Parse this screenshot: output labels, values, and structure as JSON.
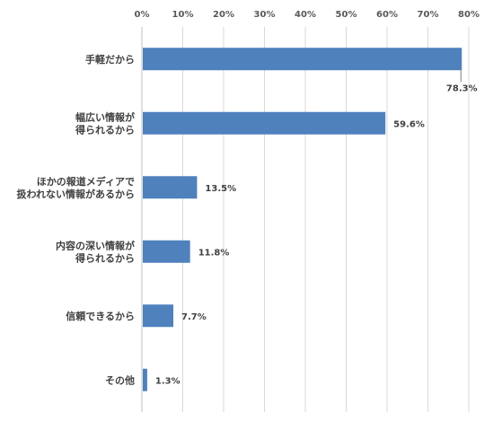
{
  "chart_data": {
    "type": "bar",
    "orientation": "horizontal",
    "categories": [
      "手軽だから",
      "幅広い情報が\n得られるから",
      "ほかの報道メディアで\n扱われない情報があるから",
      "内容の深い情報が\n得られるから",
      "信頼できるから",
      "その他"
    ],
    "values": [
      78.3,
      59.6,
      13.5,
      11.8,
      7.7,
      1.3
    ],
    "value_labels": [
      "78.3%",
      "59.6%",
      "13.5%",
      "11.8%",
      "7.7%",
      "1.3%"
    ],
    "x_ticks": [
      "0%",
      "10%",
      "20%",
      "30%",
      "40%",
      "50%",
      "60%",
      "70%",
      "80%"
    ],
    "xlim": [
      0,
      80
    ],
    "x_axis_position": "top",
    "grid": true,
    "legend": false,
    "title": "",
    "xlabel": "",
    "ylabel": "",
    "bar_color": "#4f81bd"
  }
}
